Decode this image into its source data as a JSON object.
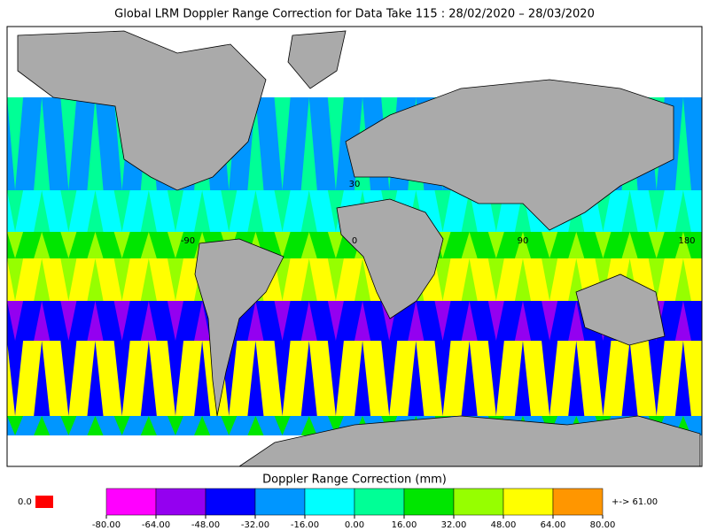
{
  "header": {
    "title": "Global LRM Doppler Range Correction for Data Take 115 : 28/02/2020 – 28/03/2020"
  },
  "map": {
    "grid_labels": [
      "30",
      "-90",
      "0",
      "90",
      "180"
    ]
  },
  "colorbar": {
    "title": "Doppler Range Correction (mm)",
    "colors": [
      "#ff00ff",
      "#9400f0",
      "#0000ff",
      "#0096ff",
      "#00ffff",
      "#00ff96",
      "#00e600",
      "#96ff00",
      "#ffff00",
      "#ff9600"
    ],
    "ticks": [
      "-80.00",
      "-64.00",
      "-48.00",
      "-32.00",
      "-16.00",
      "0.00",
      "16.00",
      "32.00",
      "48.00",
      "64.00",
      "80.00"
    ],
    "underflow": {
      "label": "0.0",
      "color": "#ff0000"
    },
    "overflow": {
      "label": "+-> 61.00",
      "color": "#ff9600"
    }
  }
}
